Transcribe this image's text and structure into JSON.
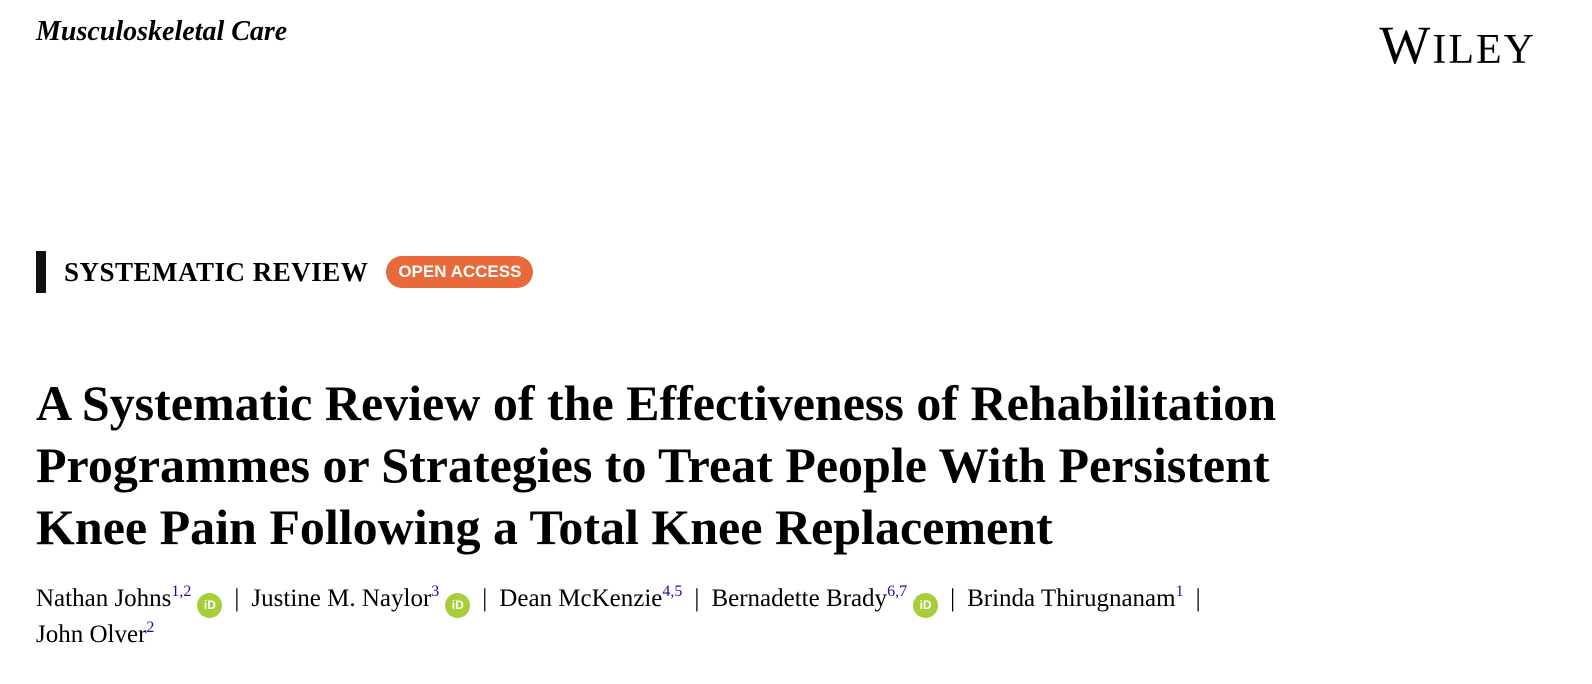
{
  "journal": {
    "name": "Musculoskeletal Care"
  },
  "publisher": {
    "logo_text": "WILEY"
  },
  "article": {
    "type": "SYSTEMATIC REVIEW",
    "badge": "OPEN ACCESS",
    "title_lines": [
      "A Systematic Review of the Effectiveness of Rehabilitation",
      "Programmes or Strategies to Treat People With Persistent",
      "Knee Pain Following a Total Knee Replacement"
    ]
  },
  "authors": [
    {
      "name": "Nathan Johns",
      "aff": "1,2",
      "orcid_label": "iD"
    },
    {
      "name": "Justine M. Naylor",
      "aff": "3",
      "orcid_label": "iD"
    },
    {
      "name": "Dean McKenzie",
      "aff": "4,5"
    },
    {
      "name": "Bernadette Brady",
      "aff": "6,7",
      "orcid_label": "iD"
    },
    {
      "name": "Brinda Thirugnanam",
      "aff": "1"
    },
    {
      "name": "John Olver",
      "aff": "2"
    }
  ],
  "separator": "|",
  "colors": {
    "open_access": "#e8693a",
    "orcid": "#a6ce39",
    "affiliation_link": "#1a0dab"
  }
}
